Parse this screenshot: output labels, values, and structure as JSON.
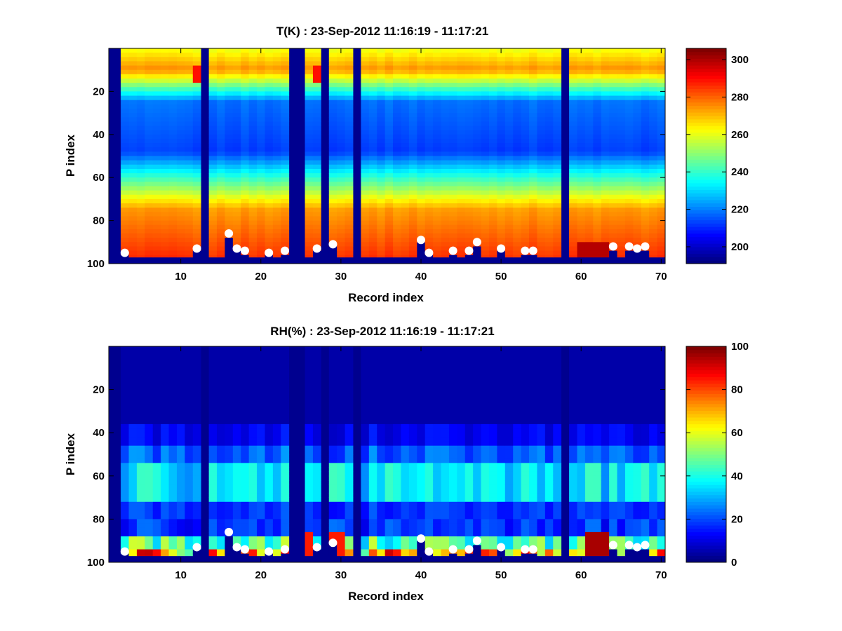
{
  "chart_data": [
    {
      "type": "heatmap",
      "title": "T(K) : 23-Sep-2012 11:16:19 - 11:17:21",
      "xlabel": "Record index",
      "ylabel": "P index",
      "xlim": [
        1,
        70.5
      ],
      "ylim": [
        100,
        0
      ],
      "y_reversed": true,
      "xticks": [
        10,
        20,
        30,
        40,
        50,
        60,
        70
      ],
      "yticks": [
        20,
        40,
        60,
        80,
        100
      ],
      "colormap": "jet",
      "clim": [
        191,
        306
      ],
      "colorbar_ticks": [
        200,
        220,
        240,
        260,
        280,
        300
      ],
      "missing_records": [
        1,
        2,
        13,
        24,
        25,
        28,
        32,
        58
      ],
      "value_model": "temperature profile: ~275 near P10, min ~212 near P40-50, rising to ~285 at P92-97",
      "surface_markers": [
        {
          "x": 3,
          "y": 95
        },
        {
          "x": 12,
          "y": 93
        },
        {
          "x": 16,
          "y": 86
        },
        {
          "x": 17,
          "y": 93
        },
        {
          "x": 18,
          "y": 94
        },
        {
          "x": 21,
          "y": 95
        },
        {
          "x": 23,
          "y": 94
        },
        {
          "x": 27,
          "y": 93
        },
        {
          "x": 29,
          "y": 91
        },
        {
          "x": 40,
          "y": 89
        },
        {
          "x": 41,
          "y": 95
        },
        {
          "x": 44,
          "y": 94
        },
        {
          "x": 46,
          "y": 94
        },
        {
          "x": 47,
          "y": 90
        },
        {
          "x": 50,
          "y": 93
        },
        {
          "x": 53,
          "y": 94
        },
        {
          "x": 54,
          "y": 94
        },
        {
          "x": 64,
          "y": 92
        },
        {
          "x": 66,
          "y": 92
        },
        {
          "x": 67,
          "y": 93
        },
        {
          "x": 68,
          "y": 92
        }
      ]
    },
    {
      "type": "heatmap",
      "title": "RH(%) : 23-Sep-2012 11:16:19 - 11:17:21",
      "xlabel": "Record index",
      "ylabel": "P index",
      "xlim": [
        1,
        70.5
      ],
      "ylim": [
        100,
        0
      ],
      "y_reversed": true,
      "xticks": [
        10,
        20,
        30,
        40,
        50,
        60,
        70
      ],
      "yticks": [
        20,
        40,
        60,
        80,
        100
      ],
      "colormap": "jet",
      "clim": [
        0,
        100
      ],
      "colorbar_ticks": [
        0,
        20,
        40,
        60,
        80,
        100
      ],
      "missing_records": [
        1,
        2,
        13,
        24,
        25,
        28,
        32,
        58
      ],
      "value_model": "relative humidity: ~5 above P40, 30-45 band near P55-70, ~10-20 near P75-85, 40-100 near P88-97",
      "surface_markers": [
        {
          "x": 3,
          "y": 95
        },
        {
          "x": 12,
          "y": 93
        },
        {
          "x": 16,
          "y": 86
        },
        {
          "x": 17,
          "y": 93
        },
        {
          "x": 18,
          "y": 94
        },
        {
          "x": 21,
          "y": 95
        },
        {
          "x": 23,
          "y": 94
        },
        {
          "x": 27,
          "y": 93
        },
        {
          "x": 29,
          "y": 91
        },
        {
          "x": 40,
          "y": 89
        },
        {
          "x": 41,
          "y": 95
        },
        {
          "x": 44,
          "y": 94
        },
        {
          "x": 46,
          "y": 94
        },
        {
          "x": 47,
          "y": 90
        },
        {
          "x": 50,
          "y": 93
        },
        {
          "x": 53,
          "y": 94
        },
        {
          "x": 54,
          "y": 94
        },
        {
          "x": 64,
          "y": 92
        },
        {
          "x": 66,
          "y": 92
        },
        {
          "x": 67,
          "y": 93
        },
        {
          "x": 68,
          "y": 92
        }
      ]
    }
  ]
}
